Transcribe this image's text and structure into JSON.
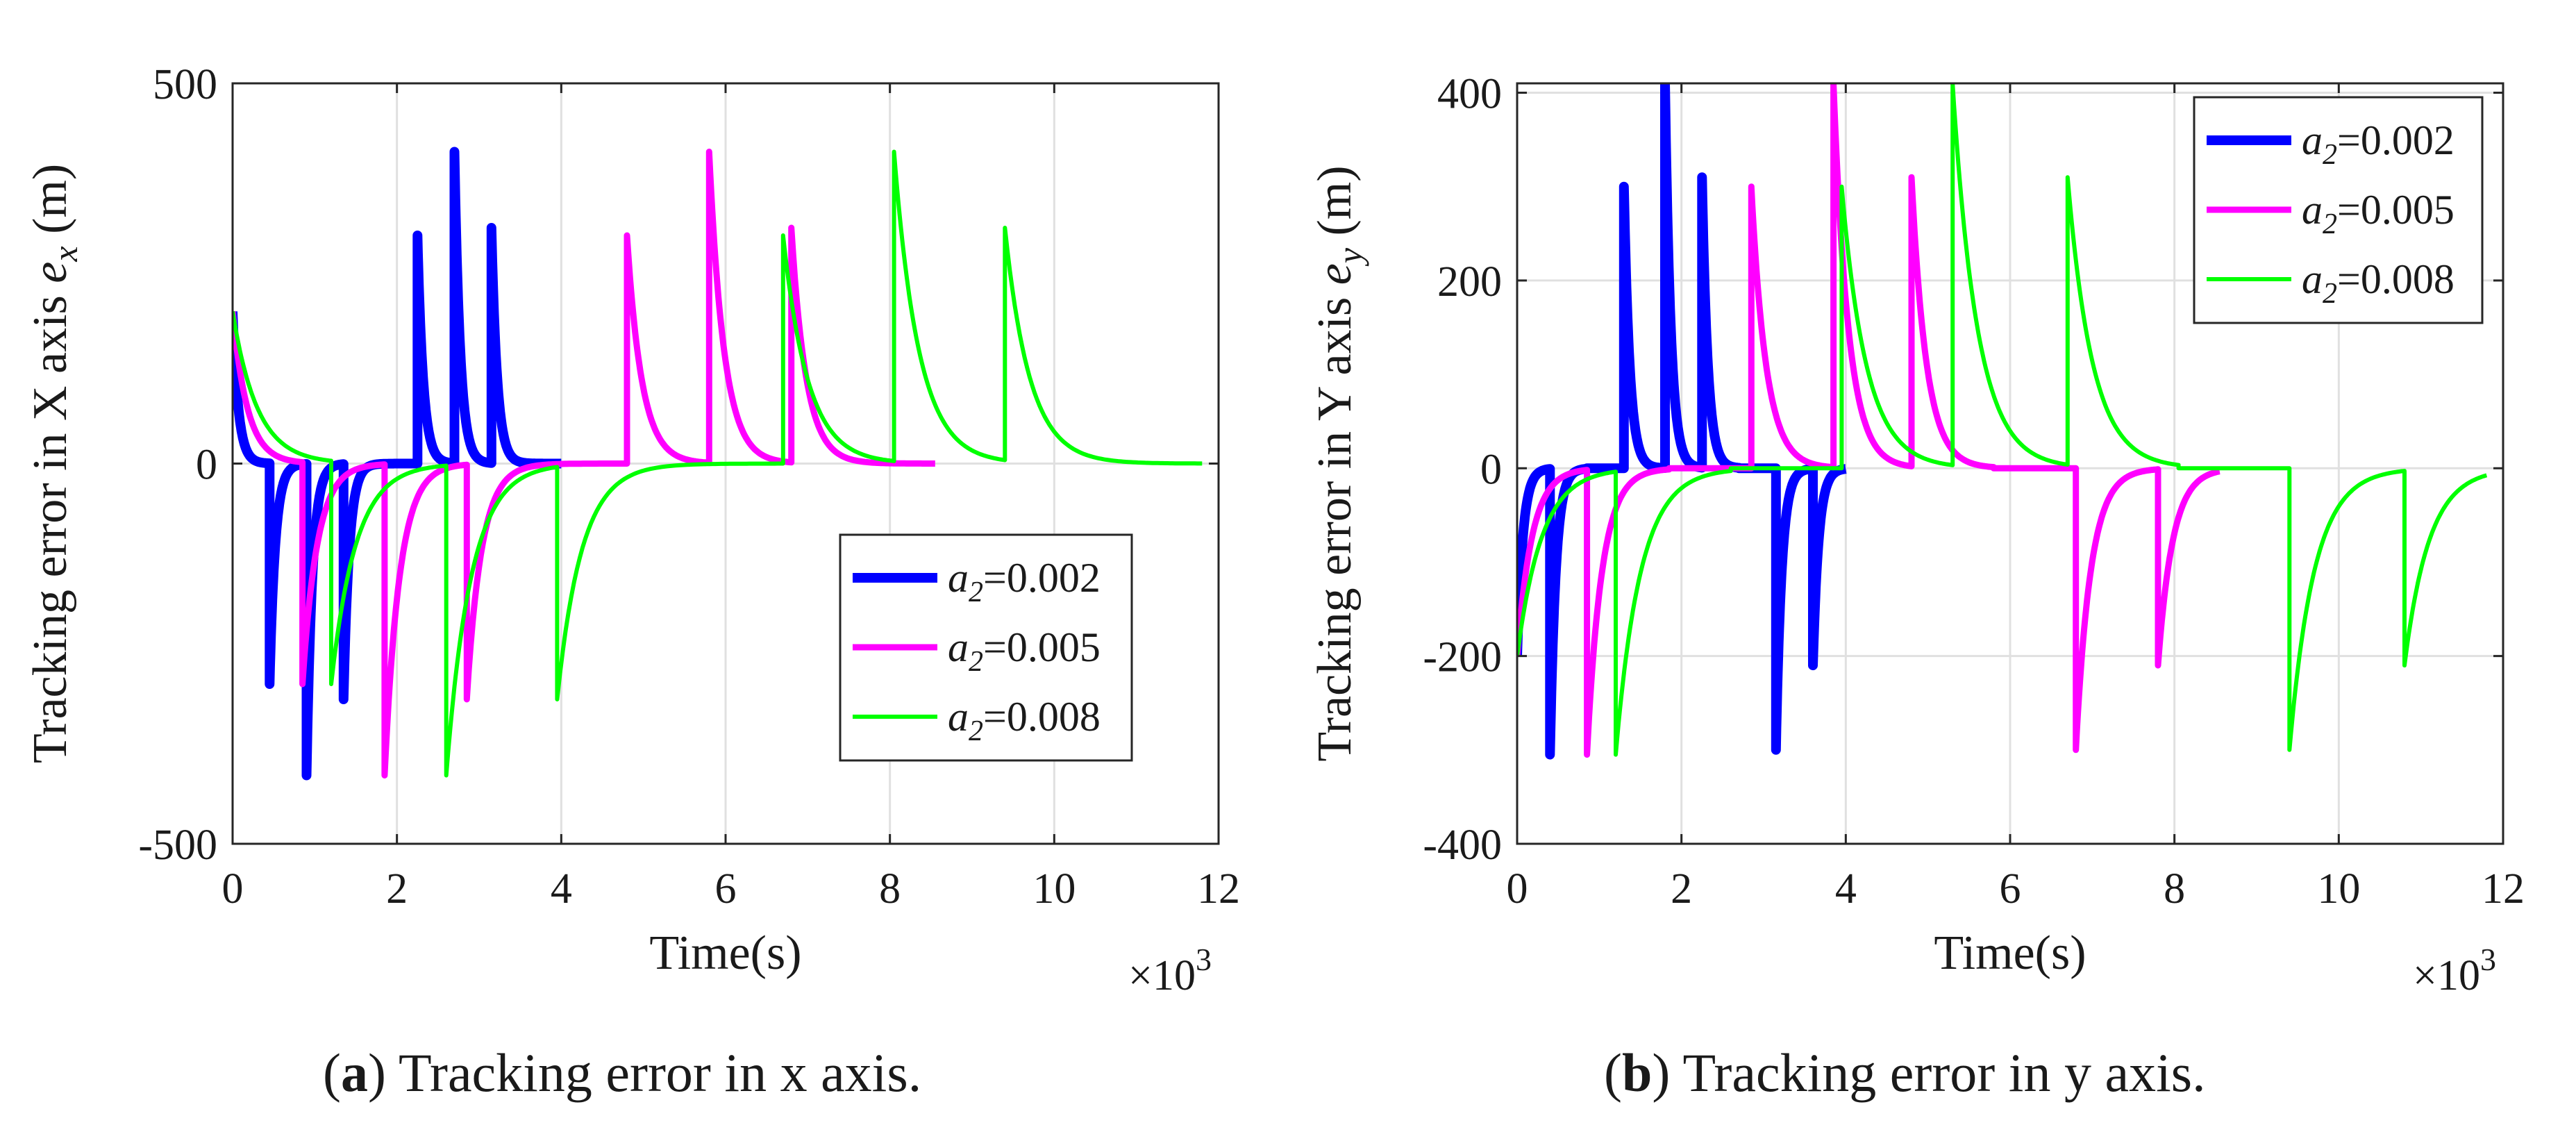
{
  "colors": {
    "blue": "#0000ff",
    "magenta": "#ff00ff",
    "green": "#00ff00",
    "grid": "#e0e0e0",
    "axis": "#262626"
  },
  "captions": [
    {
      "label": "a",
      "text": " Tracking error in x axis.",
      "open": "(",
      "close": ")"
    },
    {
      "label": "b",
      "text": " Tracking error in y axis.",
      "open": "(",
      "close": ")"
    }
  ],
  "chart_data": [
    {
      "type": "line",
      "title": "",
      "xlabel": "Time(s)",
      "ylabel_main": "Tracking error in X axis ",
      "ylabel_var": "e",
      "ylabel_sub": "x",
      "ylabel_unit": " (m)",
      "x_multiplier": "×10",
      "x_multiplier_exp": "3",
      "xlim": [
        0,
        12
      ],
      "ylim": [
        -500,
        500
      ],
      "xticks": [
        0,
        2,
        4,
        6,
        8,
        10,
        12
      ],
      "yticks": [
        -500,
        0,
        500
      ],
      "ytick_labels": [
        "-500",
        "0",
        "500"
      ],
      "grid": true,
      "legend_position": "center-right",
      "series": [
        {
          "name": "a_2=0.002",
          "label_var": "a",
          "label_sub": "2",
          "label_val": "=0.002",
          "color": "blue",
          "width": 14,
          "tau": 0.07,
          "events": [
            [
              0,
              200
            ],
            [
              0.45,
              -290
            ],
            [
              0.9,
              -410
            ],
            [
              1.35,
              -310
            ],
            [
              2.25,
              300
            ],
            [
              2.7,
              410
            ],
            [
              3.15,
              310
            ]
          ],
          "end": 4.0
        },
        {
          "name": "a_2=0.005",
          "label_var": "a",
          "label_sub": "2",
          "label_val": "=0.005",
          "color": "magenta",
          "width": 9,
          "tau": 0.18,
          "events": [
            [
              0,
              200
            ],
            [
              0.85,
              -290
            ],
            [
              1.85,
              -410
            ],
            [
              2.85,
              -310
            ],
            [
              4.8,
              300
            ],
            [
              5.8,
              410
            ],
            [
              6.8,
              310
            ]
          ],
          "end": 8.55
        },
        {
          "name": "a_2=0.008",
          "label_var": "a",
          "label_sub": "2",
          "label_val": "=0.008",
          "color": "green",
          "width": 6,
          "tau": 0.3,
          "events": [
            [
              0,
              200
            ],
            [
              1.2,
              -290
            ],
            [
              2.6,
              -410
            ],
            [
              3.95,
              -310
            ],
            [
              6.7,
              300
            ],
            [
              8.05,
              410
            ],
            [
              9.4,
              310
            ]
          ],
          "end": 11.8
        }
      ]
    },
    {
      "type": "line",
      "title": "",
      "xlabel": "Time(s)",
      "ylabel_main": "Tracking error in Y axis ",
      "ylabel_var": "e",
      "ylabel_sub": "y",
      "ylabel_unit": " (m)",
      "x_multiplier": "×10",
      "x_multiplier_exp": "3",
      "xlim": [
        0,
        12
      ],
      "ylim": [
        -400,
        410
      ],
      "xticks": [
        0,
        2,
        4,
        6,
        8,
        10,
        12
      ],
      "yticks": [
        -400,
        -200,
        0,
        200,
        400
      ],
      "ytick_labels": [
        "-400",
        "-200",
        "0",
        "200",
        "400"
      ],
      "grid": true,
      "legend_position": "top-right",
      "series": [
        {
          "name": "a_2=0.002",
          "label_var": "a",
          "label_sub": "2",
          "label_val": "=0.002",
          "color": "blue",
          "width": 14,
          "tau": 0.07,
          "events": [
            [
              0,
              -200
            ],
            [
              0.4,
              -305
            ],
            [
              0.85,
              0
            ],
            [
              1.3,
              300
            ],
            [
              1.8,
              410
            ],
            [
              2.25,
              310
            ],
            [
              2.7,
              0
            ],
            [
              3.15,
              -300
            ],
            [
              3.6,
              -210
            ]
          ],
          "end": 4.0
        },
        {
          "name": "a_2=0.005",
          "label_var": "a",
          "label_sub": "2",
          "label_val": "=0.005",
          "color": "magenta",
          "width": 9,
          "tau": 0.18,
          "events": [
            [
              0,
              -200
            ],
            [
              0.85,
              -305
            ],
            [
              1.85,
              0
            ],
            [
              2.85,
              300
            ],
            [
              3.85,
              410
            ],
            [
              4.8,
              310
            ],
            [
              5.8,
              0
            ],
            [
              6.8,
              -300
            ],
            [
              7.8,
              -210
            ]
          ],
          "end": 8.55
        },
        {
          "name": "a_2=0.008",
          "label_var": "a",
          "label_sub": "2",
          "label_val": "=0.008",
          "color": "green",
          "width": 6,
          "tau": 0.3,
          "events": [
            [
              0,
              -200
            ],
            [
              1.2,
              -305
            ],
            [
              2.6,
              0
            ],
            [
              3.95,
              300
            ],
            [
              5.3,
              410
            ],
            [
              6.7,
              310
            ],
            [
              8.05,
              0
            ],
            [
              9.4,
              -300
            ],
            [
              10.8,
              -210
            ]
          ],
          "end": 11.8
        }
      ]
    }
  ]
}
